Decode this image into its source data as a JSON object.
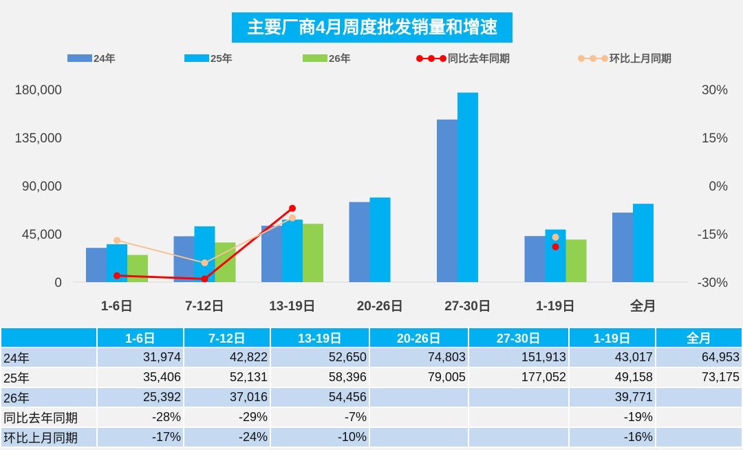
{
  "chart_data": {
    "type": "bar+line",
    "title": "主要厂商4月周度批发销量和增速",
    "categories": [
      "1-6日",
      "7-12日",
      "13-19日",
      "20-26日",
      "27-30日",
      "1-19日",
      "全月"
    ],
    "series": [
      {
        "name": "24年",
        "type": "bar",
        "color": "#558ed5",
        "values": [
          31974,
          42822,
          52650,
          74803,
          151913,
          43017,
          64953
        ]
      },
      {
        "name": "25年",
        "type": "bar",
        "color": "#00b0f0",
        "values": [
          35406,
          52131,
          58396,
          79005,
          177052,
          49158,
          73175
        ]
      },
      {
        "name": "26年",
        "type": "bar",
        "color": "#92d050",
        "values": [
          25392,
          37016,
          54456,
          null,
          null,
          39771,
          null
        ]
      },
      {
        "name": "同比去年同期",
        "type": "line",
        "axis": "right",
        "color": "#ff0000",
        "values": [
          -28,
          -29,
          -7,
          null,
          null,
          -19,
          null
        ]
      },
      {
        "name": "环比上月同期",
        "type": "line",
        "axis": "right",
        "color": "#fac090",
        "values": [
          -17,
          -24,
          -10,
          null,
          null,
          -16,
          null
        ]
      }
    ],
    "y_left": {
      "min": 0,
      "max": 180000,
      "ticks": [
        "0",
        "45,000",
        "90,000",
        "135,000",
        "180,000"
      ]
    },
    "y_right": {
      "min": -30,
      "max": 30,
      "ticks": [
        "-30%",
        "-15%",
        "0%",
        "15%",
        "30%"
      ]
    },
    "legend_position": "top",
    "grid": false
  },
  "table": {
    "header": [
      "",
      "1-6日",
      "7-12日",
      "13-19日",
      "20-26日",
      "27-30日",
      "1-19日",
      "全月"
    ],
    "rows": [
      [
        "24年",
        "31,974",
        "42,822",
        "52,650",
        "74,803",
        "151,913",
        "43,017",
        "64,953"
      ],
      [
        "25年",
        "35,406",
        "52,131",
        "58,396",
        "79,005",
        "177,052",
        "49,158",
        "73,175"
      ],
      [
        "26年",
        "25,392",
        "37,016",
        "54,456",
        "",
        "",
        "39,771",
        ""
      ],
      [
        "同比去年同期",
        "-28%",
        "-29%",
        "-7%",
        "",
        "",
        "-19%",
        ""
      ],
      [
        "环比上月同期",
        "-17%",
        "-24%",
        "-10%",
        "",
        "",
        "-16%",
        ""
      ]
    ]
  }
}
